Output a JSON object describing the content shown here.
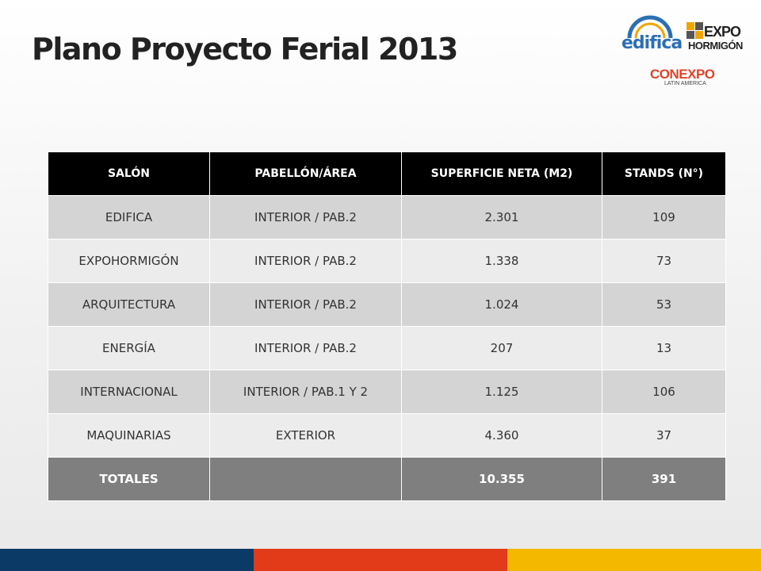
{
  "title": "Plano Proyecto Ferial 2013",
  "logos": {
    "edifica": "edifica",
    "expo": "EXPO",
    "hormigon": "HORMIGÓN",
    "conexpo": "CONEXPO",
    "conexpo_sub": "LATIN AMERICA"
  },
  "table": {
    "headers": [
      "SALÓN",
      "PABELLÓN/ÁREA",
      "SUPERFICIE NETA (M2)",
      "STANDS (N°)"
    ],
    "rows": [
      [
        "EDIFICA",
        "INTERIOR / PAB.2",
        "2.301",
        "109"
      ],
      [
        "EXPOHORMIGÓN",
        "INTERIOR / PAB.2",
        "1.338",
        "73"
      ],
      [
        "ARQUITECTURA",
        "INTERIOR / PAB.2",
        "1.024",
        "53"
      ],
      [
        "ENERGÍA",
        "INTERIOR / PAB.2",
        "207",
        "13"
      ],
      [
        "INTERNACIONAL",
        "INTERIOR / PAB.1 Y 2",
        "1.125",
        "106"
      ],
      [
        "MAQUINARIAS",
        "EXTERIOR",
        "4.360",
        "37"
      ]
    ],
    "total": [
      "TOTALES",
      "",
      "10.355",
      "391"
    ]
  },
  "colors": {
    "bar_blue": "#0b3a66",
    "bar_red": "#e13b1a",
    "bar_yellow": "#f5b800"
  }
}
